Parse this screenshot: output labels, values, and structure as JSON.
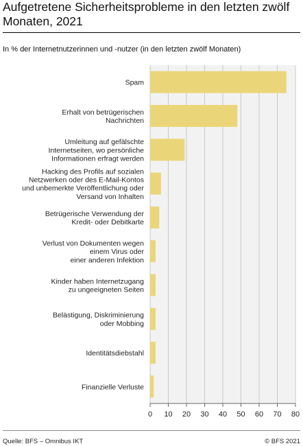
{
  "chart_data": {
    "type": "bar",
    "orientation": "horizontal",
    "title": "Aufgetretene Sicherheitsprobleme in den letzten zwölf Monaten, 2021",
    "subtitle": "In % der Internetnutzerinnen und -nutzer (in den letzten zwölf Monaten)",
    "categories": [
      [
        "Spam"
      ],
      [
        "Erhalt von betrügerischen",
        "Nachrichten"
      ],
      [
        "Umleitung auf gefälschte",
        "Internetseiten, wo persönliche",
        "Informationen erfragt werden"
      ],
      [
        "Hacking des Profils auf sozialen",
        "Netzwerken oder des E-Mail-Kontos",
        "und unbemerkte Veröffentlichung oder",
        "Versand von  Inhalten"
      ],
      [
        "Betrügerische Verwendung der",
        "Kredit- oder Debitkarte"
      ],
      [
        "Verlust von Dokumenten wegen",
        "einem Virus oder",
        "einer anderen Infektion"
      ],
      [
        "Kinder haben Internetzugang",
        "zu ungeeigneten Seiten"
      ],
      [
        "Belästigung, Diskriminierung",
        "oder Mobbing"
      ],
      [
        "Identitätsdiebstahl"
      ],
      [
        "Finanzielle Verluste"
      ]
    ],
    "values": [
      75,
      48,
      19,
      6,
      5,
      3,
      3,
      3,
      3,
      2
    ],
    "xlim": [
      0,
      80
    ],
    "xticks": [
      0,
      10,
      20,
      30,
      40,
      50,
      60,
      70,
      80
    ],
    "grid": true,
    "bar_color": "#ead679",
    "grid_color": "#c8c8c8",
    "plot_bg": "#f2f2f2"
  },
  "footer": {
    "source": "Quelle: BFS – Omnibus IKT",
    "copyright": "© BFS 2021"
  }
}
